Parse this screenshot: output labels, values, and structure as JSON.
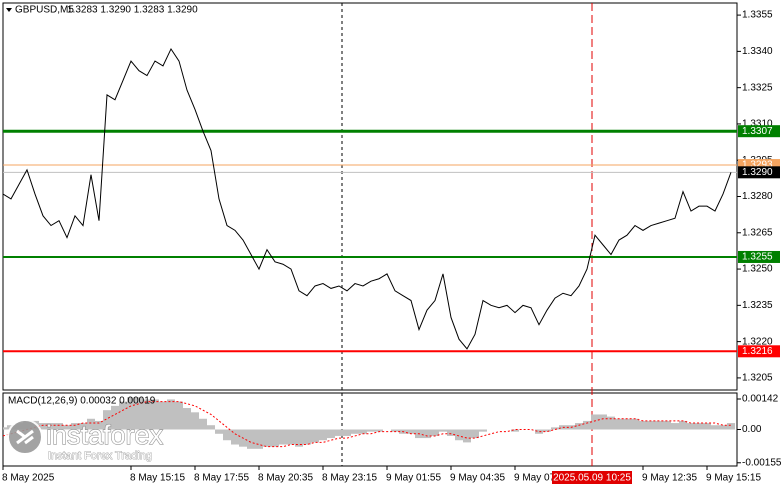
{
  "chart_data": [
    {
      "type": "line",
      "title": "GBPUSD,M5",
      "subtitle": "1.3283 1.3290 1.3283 1.3290",
      "color": "#000000",
      "categories": [
        "8 May 2025",
        null,
        null,
        null,
        null,
        null,
        null,
        null,
        null,
        null,
        null,
        null,
        null,
        null,
        null,
        null,
        "8 May 15:15",
        null,
        null,
        null,
        null,
        null,
        null,
        null,
        "8 May 17:55",
        null,
        null,
        null,
        null,
        null,
        null,
        null,
        "8 May 20:35",
        null,
        null,
        null,
        null,
        null,
        null,
        null,
        "8 May 23:15",
        null,
        null,
        null,
        null,
        null,
        null,
        null,
        "9 May 01:55",
        null,
        null,
        null,
        null,
        null,
        null,
        null,
        "9 May 04:35",
        null,
        null,
        null,
        null,
        null,
        null,
        null,
        "9 May 07:15",
        null,
        null,
        null,
        null,
        null,
        null,
        null,
        null,
        null,
        null,
        null,
        null,
        null,
        null,
        null,
        "9 May 12:35",
        null,
        null,
        null,
        null,
        null,
        null,
        null,
        "9 May 15:15",
        null,
        null,
        null
      ],
      "values": [
        1.3281,
        1.3279,
        1.3285,
        1.3291,
        1.3281,
        1.3272,
        1.3268,
        1.327,
        1.3263,
        1.3272,
        1.3268,
        1.3289,
        1.327,
        1.3322,
        1.332,
        1.3328,
        1.3336,
        1.3332,
        1.333,
        1.3336,
        1.3334,
        1.3341,
        1.3336,
        1.3324,
        1.3316,
        1.3307,
        1.3299,
        1.3279,
        1.3268,
        1.3266,
        1.3262,
        1.3256,
        1.325,
        1.3258,
        1.3253,
        1.3252,
        1.325,
        1.3241,
        1.3239,
        1.3243,
        1.3244,
        1.3242,
        1.3243,
        1.3241,
        1.3244,
        1.3243,
        1.3245,
        1.3246,
        1.3248,
        1.3241,
        1.3239,
        1.3237,
        1.3225,
        1.3233,
        1.3237,
        1.3248,
        1.323,
        1.3221,
        1.3217,
        1.3223,
        1.3237,
        1.3235,
        1.3234,
        1.3235,
        1.3232,
        1.3235,
        1.3234,
        1.3227,
        1.3233,
        1.3238,
        1.324,
        1.3239,
        1.3243,
        1.325,
        1.3264,
        1.326,
        1.3256,
        1.3262,
        1.3264,
        1.3268,
        1.3266,
        1.3268,
        1.3269,
        1.327,
        1.3271,
        1.3282,
        1.3274,
        1.3276,
        1.3276,
        1.3274,
        1.3281,
        1.329
      ],
      "ylim": [
        1.32,
        1.336
      ],
      "yticks": [
        1.3355,
        {
          "value": 1.334,
          "label": "1.3340"
        },
        1.3325,
        {
          "value": 1.331,
          "label": "1.3310"
        },
        1.3295,
        {
          "value": 1.328,
          "label": "1.3280"
        },
        1.3265,
        {
          "value": 1.325,
          "label": "1.3250"
        },
        1.3235,
        {
          "value": 1.322,
          "label": "1.3220"
        },
        1.3205
      ],
      "levels": [
        {
          "value": 1.3307,
          "color": "#008000",
          "label_color": "#008000",
          "width": 3
        },
        {
          "value": 1.3293,
          "color": "#f4a460",
          "label_color": "#f4a460",
          "width": 1
        },
        {
          "value": 1.329,
          "label": "1.3290",
          "color": "#c0c0c0",
          "label_color": "#000000",
          "width": 1
        },
        {
          "value": 1.3255,
          "color": "#008000",
          "label_color": "#008000",
          "width": 2
        },
        {
          "value": 1.3216,
          "color": "#ff0000",
          "label_color": "#ff0000",
          "width": 2
        }
      ],
      "crosshair_label": "2025.05.09 10:25"
    },
    {
      "type": "macd",
      "title": "MACD(12,26,9) 0.00032 0.00019",
      "series": [
        {
          "type": "bar",
          "color": "#c0c0c0",
          "values": [
            0.0001,
            0.0002,
            0.0003,
            0.0004,
            0.0004,
            0.0003,
            0.0003,
            0.0003,
            0.0002,
            0.0003,
            0.0003,
            0.0005,
            0.0004,
            0.0009,
            0.0011,
            0.0013,
            0.0015,
            0.0015,
            0.0014,
            0.0014,
            0.0013,
            0.0014,
            0.0013,
            0.001,
            0.0008,
            0.0005,
            0.0002,
            -0.0002,
            -0.0005,
            -0.0007,
            -0.0008,
            -0.0009,
            -0.0009,
            -0.0008,
            -0.0008,
            -0.0007,
            -0.0007,
            -0.0008,
            -0.0007,
            -0.0006,
            -0.0005,
            -0.0004,
            -0.0003,
            -0.0003,
            -0.0002,
            -0.0002,
            -0.0001,
            -0.0001,
            0,
            -0.0001,
            -0.0002,
            -0.0002,
            -0.0004,
            -0.0004,
            -0.0003,
            -0.0001,
            -0.0003,
            -0.0005,
            -0.0006,
            -0.0004,
            -0.0001,
            0,
            0,
            0,
            -0.0001,
            0,
            0,
            -0.0002,
            -0.0001,
            0.0001,
            0.0002,
            0.0002,
            0.0003,
            0.0004,
            0.0007,
            0.0007,
            0.0006,
            0.0005,
            0.0005,
            0.0005,
            0.0004,
            0.0004,
            0.0004,
            0.0004,
            0.0003,
            0.0004,
            0.0003,
            0.0003,
            0.0003,
            0.0002,
            0.0002,
            0.0003
          ]
        },
        {
          "type": "line",
          "color": "#ff0000",
          "values": [
            -0.0003,
            -0.0002,
            -0.0001,
            0,
            0.0001,
            0.0002,
            0.0002,
            0.0002,
            0.0002,
            0.0002,
            0.0003,
            0.0003,
            0.0003,
            0.0005,
            0.0007,
            0.0009,
            0.0011,
            0.0012,
            0.0013,
            0.0013,
            0.0013,
            0.0013,
            0.0013,
            0.0012,
            0.0011,
            0.0009,
            0.0007,
            0.0004,
            0.0001,
            -0.0002,
            -0.0004,
            -0.0006,
            -0.0007,
            -0.0008,
            -0.0008,
            -0.0008,
            -0.0007,
            -0.0007,
            -0.0007,
            -0.0006,
            -0.0006,
            -0.0005,
            -0.0004,
            -0.0004,
            -0.0003,
            -0.0002,
            -0.0002,
            -0.0001,
            -0.0001,
            -0.0001,
            -0.0001,
            -0.0002,
            -0.0002,
            -0.0003,
            -0.0003,
            -0.0002,
            -0.0002,
            -0.0003,
            -0.0004,
            -0.0004,
            -0.0003,
            -0.0002,
            -0.0001,
            -0.0001,
            0,
            0,
            0,
            -0.0001,
            -0.0001,
            0,
            0.0001,
            0.0001,
            0.0002,
            0.0003,
            0.0004,
            0.0005,
            0.0005,
            0.0005,
            0.0005,
            0.0005,
            0.0004,
            0.0004,
            0.0004,
            0.0004,
            0.0004,
            0.0004,
            0.0003,
            0.0003,
            0.0003,
            0.0003,
            0.0002,
            0.0002
          ]
        }
      ],
      "ylim": [
        -0.0017,
        0.0017
      ],
      "yticks": [
        0.00142,
        {
          "value": 0,
          "label": "0.00"
        },
        -0.00155
      ]
    }
  ],
  "watermark": {
    "name": "instaforex",
    "tagline": "Instant Forex Trading"
  }
}
